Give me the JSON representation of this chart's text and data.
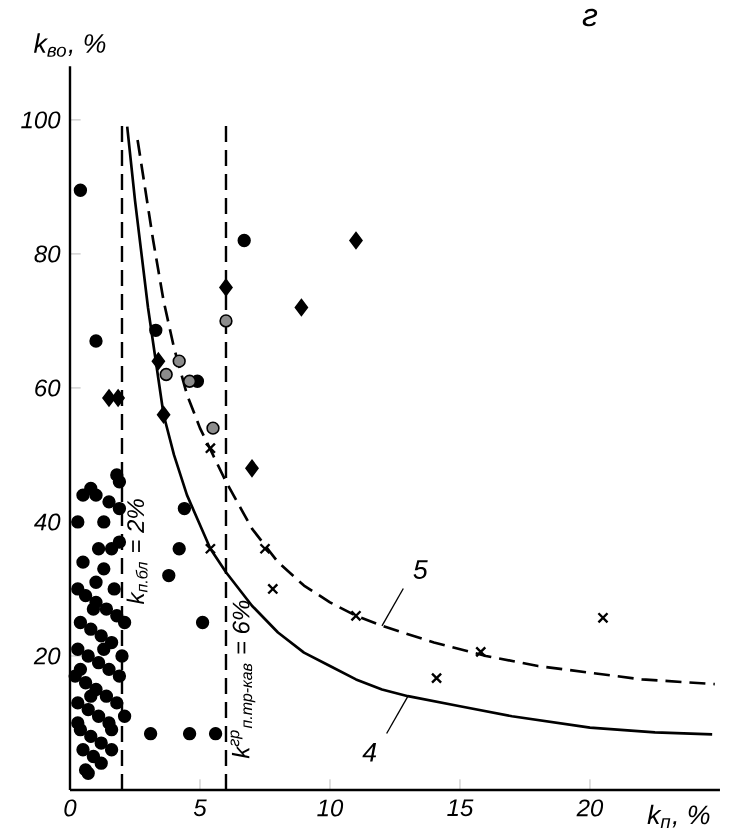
{
  "chart_data": {
    "type": "scatter",
    "title": "г",
    "xlabel": "k$_{п}$, %",
    "ylabel": "k$_{во}$, %",
    "xlim": [
      0,
      25
    ],
    "ylim": [
      0,
      108
    ],
    "xticks": [
      0,
      5,
      10,
      15,
      20
    ],
    "yticks": [
      20,
      40,
      60,
      80,
      100
    ],
    "series": [
      {
        "marker": "circle",
        "color": "#000000",
        "x": [
          0.4,
          1.0,
          6.7,
          3.3,
          4.9,
          4.4,
          4.2,
          3.8,
          5.1,
          3.1,
          4.6,
          5.6,
          0.5,
          0.8,
          1.0,
          1.5,
          1.8,
          1.9,
          0.3,
          1.9,
          1.6,
          1.3,
          1.0,
          0.3,
          0.6,
          1.0,
          1.4,
          1.8,
          2.1,
          0.4,
          0.8,
          1.2,
          1.6,
          0.3,
          0.7,
          1.1,
          1.5,
          1.9,
          0.2,
          0.6,
          1.0,
          1.4,
          1.8,
          2.1,
          0.3,
          0.7,
          1.1,
          1.5,
          0.4,
          0.8,
          1.2,
          1.6,
          0.5,
          0.9,
          1.2,
          0.6,
          0.7,
          0.3,
          0.9,
          1.3,
          1.7,
          0.5,
          2.0,
          1.1,
          0.4,
          1.6,
          0.8,
          1.9,
          1.3
        ],
        "values": [
          89.5,
          67,
          82,
          68.6,
          61,
          42,
          36,
          32,
          25,
          8.4,
          8.4,
          8.4,
          44,
          45,
          44,
          43,
          47,
          46,
          40,
          37,
          36,
          33,
          31,
          30,
          29,
          28,
          27,
          26,
          25,
          25,
          24,
          23,
          22,
          21,
          20,
          19,
          18,
          17,
          17,
          16,
          15,
          14,
          13,
          11,
          13,
          12,
          11,
          10,
          9,
          8,
          7,
          6,
          6,
          5,
          4,
          3,
          2.5,
          10,
          27,
          21,
          30,
          34,
          20,
          36,
          18,
          9,
          14,
          42,
          40
        ]
      },
      {
        "marker": "circle",
        "color": "#8c8c8c",
        "x": [
          6,
          4.2,
          3.7,
          4.6,
          5.5
        ],
        "values": [
          70,
          64,
          62,
          61,
          54
        ]
      },
      {
        "marker": "diamond",
        "color": "#000000",
        "x": [
          11,
          8.9,
          6,
          7,
          1.85,
          1.5,
          3.4,
          3.6
        ],
        "values": [
          82,
          72,
          75,
          48,
          58.5,
          58.5,
          64,
          56
        ]
      },
      {
        "marker": "cross",
        "color": "#000000",
        "x": [
          5.4,
          5.4,
          7.5,
          7.8,
          11,
          14.1,
          15.8,
          20.5
        ],
        "values": [
          51,
          36,
          36,
          30,
          26,
          16.7,
          20.6,
          25.7
        ]
      },
      {
        "type": "line",
        "name": "5",
        "line_style": "dashed",
        "marker": "none",
        "color": "#000000",
        "x": [
          2.6,
          2.8,
          3.2,
          3.6,
          4,
          4.5,
          5,
          5.5,
          6,
          7,
          8,
          9,
          10,
          11,
          12,
          14,
          16,
          18,
          20,
          22,
          24.8
        ],
        "values": [
          97,
          92,
          82,
          73,
          66,
          59,
          54,
          50,
          46,
          39,
          34,
          30.5,
          28,
          26,
          24.5,
          22,
          20,
          18.5,
          17.5,
          16.5,
          15.8
        ]
      },
      {
        "type": "line",
        "name": "4",
        "line_style": "solid",
        "marker": "none",
        "color": "#000000",
        "x": [
          2.2,
          2.5,
          3,
          3.6,
          4,
          4.5,
          5.4,
          6,
          7,
          8,
          9,
          10,
          11,
          12,
          13,
          15,
          17,
          20,
          22.5,
          24.7
        ],
        "values": [
          99,
          88,
          72,
          56,
          50,
          44,
          36,
          32.5,
          27.5,
          23.5,
          20.5,
          18.5,
          16.5,
          15,
          14,
          12.5,
          11,
          9.3,
          8.6,
          8.3
        ]
      }
    ],
    "ref_lines": [
      {
        "axis": "x",
        "value": 2,
        "label": "k$_{п.бл}$ = 2%",
        "line_style": "dashed"
      },
      {
        "axis": "x",
        "value": 6,
        "label": "k$^{гр}$$_{п.тр-кав}$ = 6%",
        "line_style": "dashed"
      }
    ]
  }
}
